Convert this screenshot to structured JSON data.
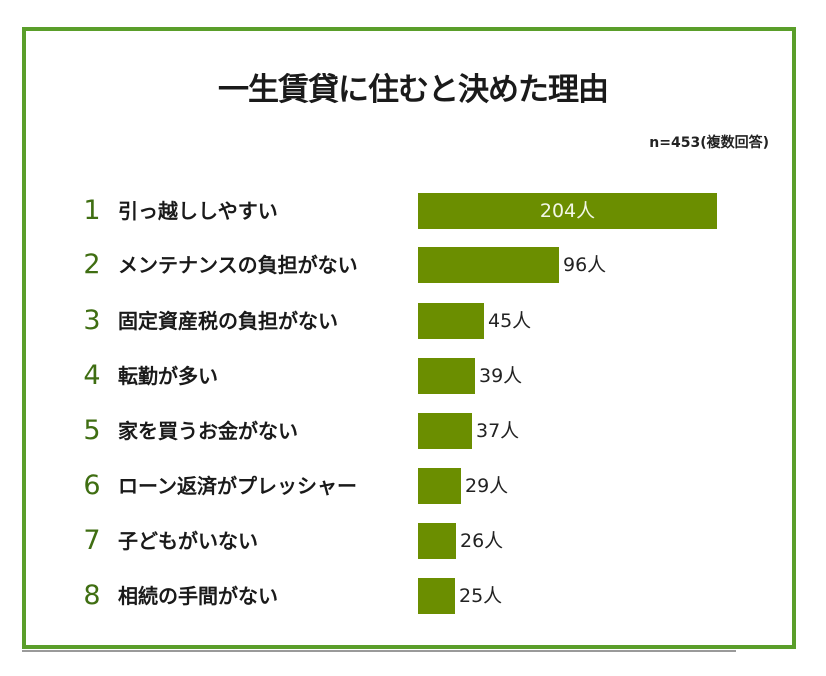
{
  "title": "一生賃貸に住むと決めた理由",
  "note": "n=453(複数回答)",
  "colors": {
    "bar": "#6b8e00",
    "frame": "#5a9e2a",
    "rank": "#3f6e12"
  },
  "rows": [
    {
      "rank": "1",
      "label": "引っ越ししやすい",
      "value": 204,
      "value_label": "204人"
    },
    {
      "rank": "2",
      "label": "メンテナンスの負担がない",
      "value": 96,
      "value_label": "96人"
    },
    {
      "rank": "3",
      "label": "固定資産税の負担がない",
      "value": 45,
      "value_label": "45人"
    },
    {
      "rank": "4",
      "label": "転勤が多い",
      "value": 39,
      "value_label": "39人"
    },
    {
      "rank": "5",
      "label": "家を買うお金がない",
      "value": 37,
      "value_label": "37人"
    },
    {
      "rank": "6",
      "label": "ローン返済がプレッシャー",
      "value": 29,
      "value_label": "29人"
    },
    {
      "rank": "7",
      "label": "子どもがいない",
      "value": 26,
      "value_label": "26人"
    },
    {
      "rank": "8",
      "label": "相続の手間がない",
      "value": 25,
      "value_label": "25人"
    }
  ],
  "chart_data": {
    "type": "bar",
    "orientation": "horizontal",
    "title": "一生賃貸に住むと決めた理由",
    "subtitle": "n=453(複数回答)",
    "categories": [
      "引っ越ししやすい",
      "メンテナンスの負担がない",
      "固定資産税の負担がない",
      "転勤が多い",
      "家を買うお金がない",
      "ローン返済がプレッシャー",
      "子どもがいない",
      "相続の手間がない"
    ],
    "values": [
      204,
      96,
      45,
      39,
      37,
      29,
      26,
      25
    ],
    "unit": "人",
    "xlabel": "",
    "ylabel": "",
    "grid": false,
    "legend": null
  }
}
